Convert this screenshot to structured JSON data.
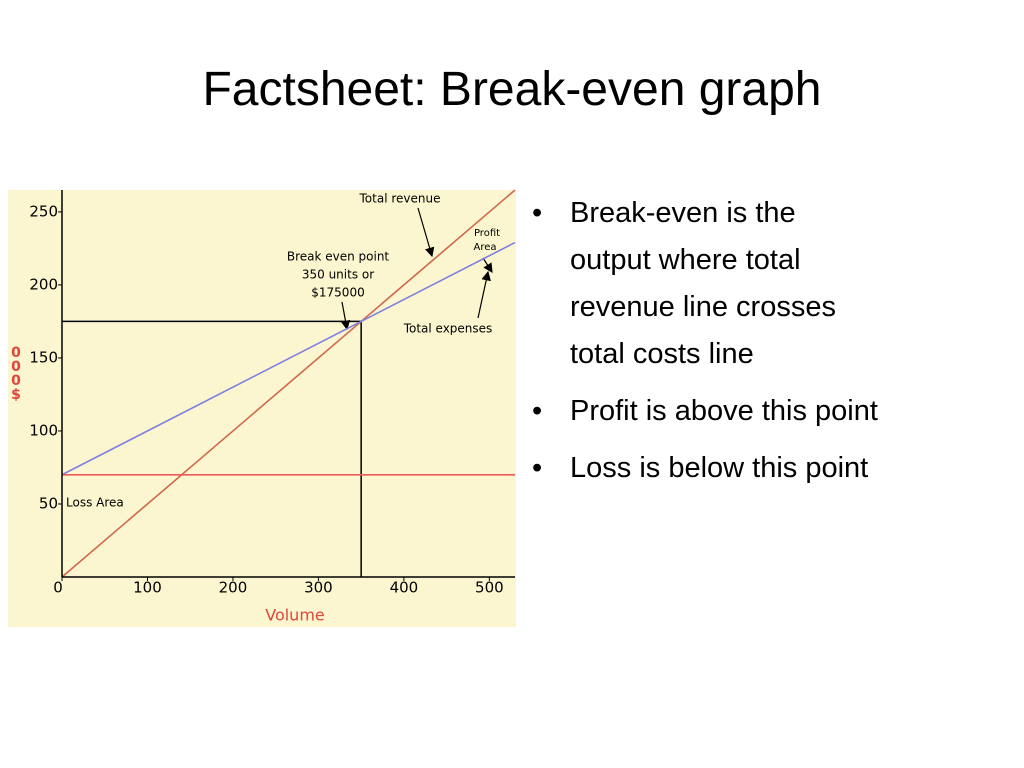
{
  "title": "Factsheet: Break-even graph",
  "bullets": [
    "Break-even is the\noutput where total\nrevenue line crosses\ntotal costs line",
    "Profit is above this point",
    "Loss is below this point"
  ],
  "chart_data": {
    "type": "line",
    "xlabel": "Volume",
    "ylabel": "000$",
    "xlim": [
      0,
      530
    ],
    "ylim": [
      0,
      265
    ],
    "xticks": [
      0,
      100,
      200,
      300,
      400,
      500
    ],
    "yticks": [
      50,
      100,
      150,
      200,
      250
    ],
    "grid": false,
    "series": [
      {
        "name": "Total revenue",
        "color": "#d0674c",
        "x": [
          0,
          530
        ],
        "values": [
          0,
          265
        ]
      },
      {
        "name": "Total expenses",
        "color": "#7f7fe0",
        "x": [
          0,
          530
        ],
        "values": [
          70,
          229
        ]
      },
      {
        "color": "#ec5a5a",
        "x": [
          0,
          530
        ],
        "values": [
          70,
          70
        ]
      }
    ],
    "break_even": {
      "x": 350,
      "y": 175,
      "label": [
        "Break even point",
        "350 units or",
        "$175000"
      ]
    },
    "annotations": {
      "profit": [
        "Profit",
        "Area"
      ],
      "loss": "Loss Area"
    }
  }
}
